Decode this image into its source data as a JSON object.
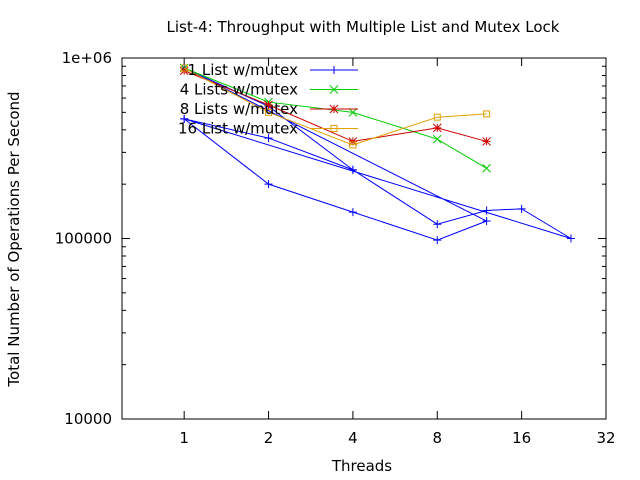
{
  "chart_data": {
    "type": "line",
    "title": "List-4: Throughput with Multiple List and Mutex Lock",
    "xlabel": "Threads",
    "ylabel": "Total Number of Operations Per Second",
    "x_scale": "log2",
    "y_scale": "log10",
    "xlim": [
      0.6,
      32
    ],
    "ylim": [
      10000,
      1000000
    ],
    "x_ticks": [
      {
        "value": 1,
        "label": "1"
      },
      {
        "value": 2,
        "label": "2"
      },
      {
        "value": 4,
        "label": "4"
      },
      {
        "value": 8,
        "label": "8"
      },
      {
        "value": 16,
        "label": "16"
      },
      {
        "value": 32,
        "label": "32"
      }
    ],
    "y_ticks": [
      {
        "value": 10000,
        "label": "10000"
      },
      {
        "value": 100000,
        "label": "100000"
      },
      {
        "value": 1000000,
        "label": "1e+06"
      }
    ],
    "grid": false,
    "legend_position": "top-left",
    "series": [
      {
        "name": "1 List w/mutex",
        "color": "#0000ff",
        "marker": "plus",
        "points": [
          {
            "x": 1,
            "y": 460000
          },
          {
            "x": 2,
            "y": 360000
          },
          {
            "x": 4,
            "y": 240000
          },
          {
            "x": 8,
            "y": 120000
          },
          {
            "x": 12,
            "y": 143000
          },
          {
            "x": 16,
            "y": 146000
          },
          {
            "x": 24,
            "y": 100000
          },
          {
            "x": 1,
            "y": 460000
          },
          {
            "x": 2,
            "y": 200000
          },
          {
            "x": 4,
            "y": 140000
          },
          {
            "x": 8,
            "y": 98000
          },
          {
            "x": 12,
            "y": 125000
          },
          {
            "x": 1,
            "y": 880000
          },
          {
            "x": 2,
            "y": 540000
          },
          {
            "x": 4,
            "y": 240000
          }
        ]
      },
      {
        "name": "4 Lists w/mutex",
        "color": "#00cc00",
        "marker": "cross",
        "points": [
          {
            "x": 1,
            "y": 880000
          },
          {
            "x": 2,
            "y": 570000
          },
          {
            "x": 4,
            "y": 500000
          },
          {
            "x": 8,
            "y": 355000
          },
          {
            "x": 12,
            "y": 245000
          }
        ]
      },
      {
        "name": "8 Lists w/mutex",
        "color": "#cc0000",
        "marker": "star",
        "points": [
          {
            "x": 1,
            "y": 850000
          },
          {
            "x": 2,
            "y": 550000
          },
          {
            "x": 4,
            "y": 345000
          },
          {
            "x": 8,
            "y": 410000
          },
          {
            "x": 12,
            "y": 345000
          }
        ]
      },
      {
        "name": "16 List w/mutex",
        "color": "#e0a000",
        "marker": "square",
        "points": [
          {
            "x": 1,
            "y": 880000
          },
          {
            "x": 2,
            "y": 500000
          },
          {
            "x": 4,
            "y": 330000
          },
          {
            "x": 8,
            "y": 470000
          },
          {
            "x": 12,
            "y": 490000
          }
        ]
      }
    ]
  }
}
